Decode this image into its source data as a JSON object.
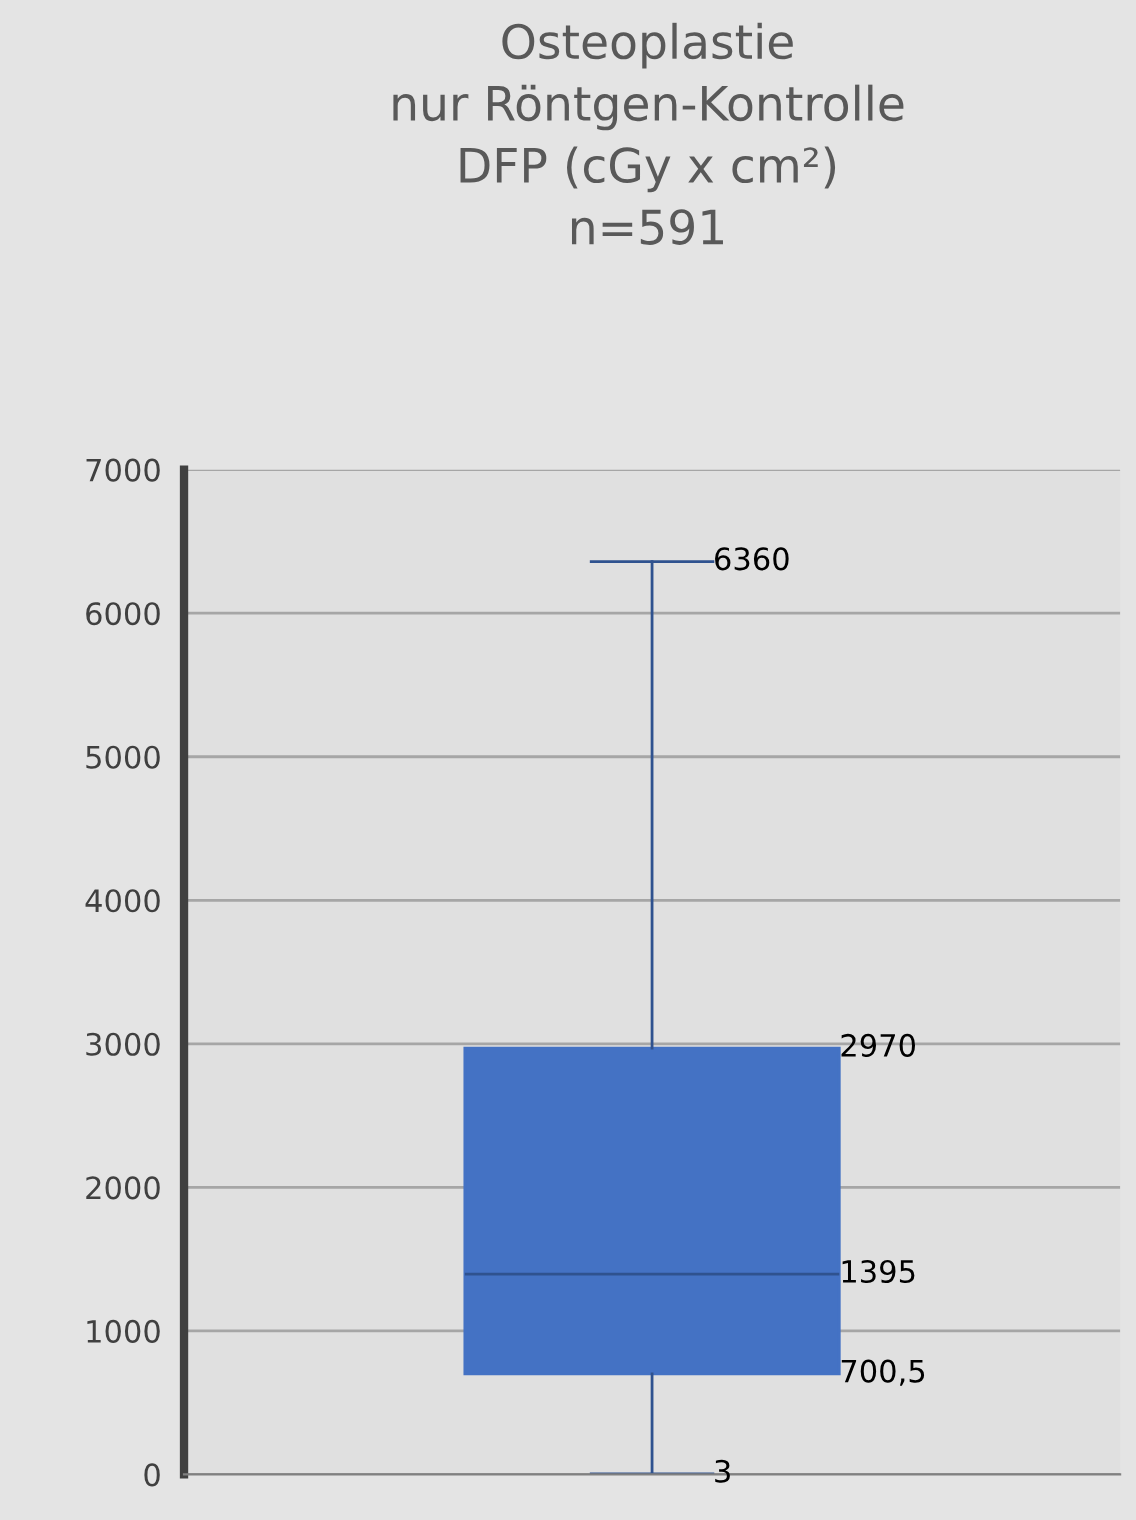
{
  "chart_data": {
    "type": "box",
    "title": "Osteoplastie\nnur Röntgen-Kontrolle\nDFP (cGy x cm²)\nn=591",
    "categories": [
      null
    ],
    "boxes": [
      {
        "low": 3,
        "q1": 700.5,
        "median": 1395,
        "q3": 2970,
        "high": 6360
      }
    ],
    "color": "#4472c4",
    "ylim": [
      0,
      7000
    ],
    "yticks": [
      0,
      1000,
      2000,
      3000,
      4000,
      5000,
      6000,
      7000
    ],
    "grid": "y",
    "annotations": [
      "3",
      "700,5",
      "1395",
      "2970",
      "6360"
    ]
  }
}
